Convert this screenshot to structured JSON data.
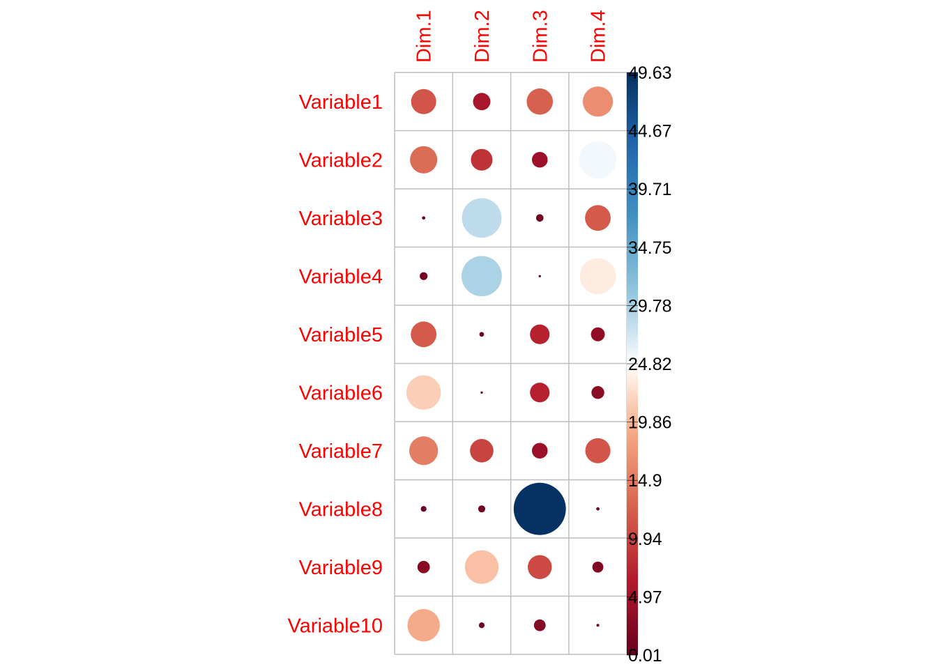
{
  "chart_data": {
    "type": "heatmap",
    "title": "",
    "columns": [
      "Dim.1",
      "Dim.2",
      "Dim.3",
      "Dim.4"
    ],
    "rows": [
      "Variable1",
      "Variable2",
      "Variable3",
      "Variable4",
      "Variable5",
      "Variable6",
      "Variable7",
      "Variable8",
      "Variable9",
      "Variable10"
    ],
    "values": [
      [
        11.5,
        5.5,
        12.5,
        16.5
      ],
      [
        13.5,
        8.5,
        4.5,
        25.5
      ],
      [
        0.2,
        28.5,
        1.0,
        12.0
      ],
      [
        1.1,
        29.5,
        0.1,
        23.5
      ],
      [
        12.0,
        0.4,
        7.0,
        3.5
      ],
      [
        21.5,
        0.1,
        7.0,
        3.0
      ],
      [
        15.0,
        10.0,
        4.5,
        11.5
      ],
      [
        0.6,
        0.9,
        49.5,
        0.2
      ],
      [
        2.8,
        20.5,
        10.5,
        2.2
      ],
      [
        19.0,
        0.6,
        2.5,
        0.15
      ]
    ],
    "colorbar": {
      "min": 0.01,
      "max": 49.63,
      "tick_labels": [
        "0.01",
        "4.97",
        "9.94",
        "14.9",
        "19.86",
        "24.82",
        "29.78",
        "34.75",
        "39.71",
        "44.67",
        "49.63"
      ]
    },
    "label_color": "#FF0000",
    "grid": true,
    "legend_position": "right"
  }
}
